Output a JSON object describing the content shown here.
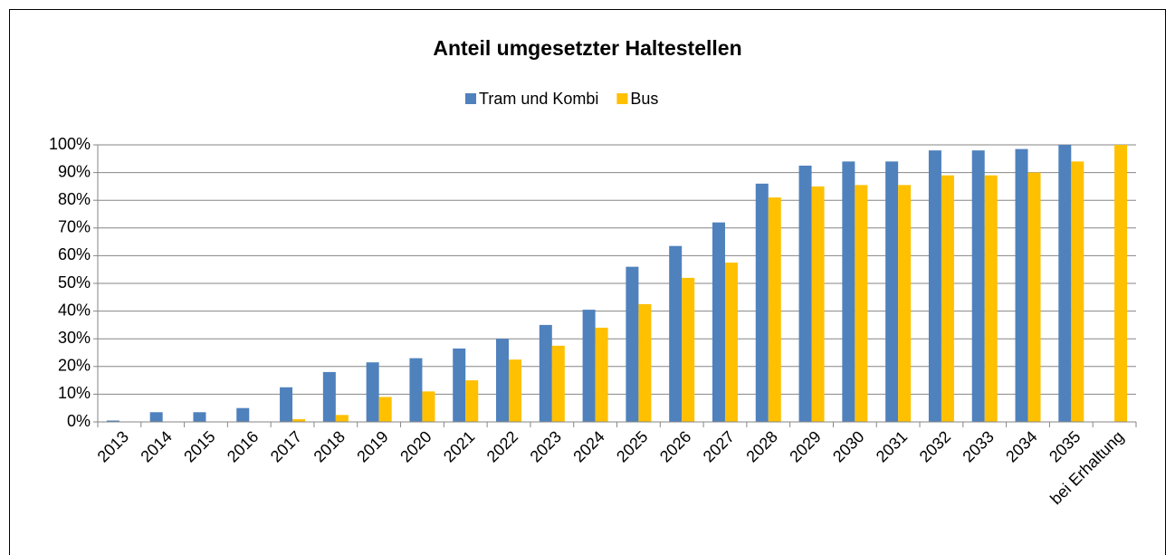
{
  "chart_data": {
    "type": "bar",
    "title": "Anteil umgesetzter Haltestellen",
    "categories": [
      "2013",
      "2014",
      "2015",
      "2016",
      "2017",
      "2018",
      "2019",
      "2020",
      "2021",
      "2022",
      "2023",
      "2024",
      "2025",
      "2026",
      "2027",
      "2028",
      "2029",
      "2030",
      "2031",
      "2032",
      "2033",
      "2034",
      "2035",
      "bei Erhaltung"
    ],
    "series": [
      {
        "name": "Tram und Kombi",
        "color": "#4f81bd",
        "values": [
          0.5,
          3.5,
          3.5,
          5,
          12.5,
          18,
          21.5,
          23,
          26.5,
          30,
          35,
          40.5,
          56,
          63.5,
          72,
          86,
          92.5,
          94,
          94,
          98,
          98,
          98.5,
          100,
          null
        ]
      },
      {
        "name": "Bus",
        "color": "#ffc000",
        "values": [
          0,
          0,
          0,
          0,
          1,
          2.5,
          9,
          11,
          15,
          22.5,
          27.5,
          34,
          42.5,
          52,
          57.5,
          81,
          85,
          85.5,
          85.5,
          89,
          89,
          90,
          94,
          100
        ]
      }
    ],
    "ylim": [
      0,
      100
    ],
    "yticks": [
      {
        "value": 0,
        "label": "0%"
      },
      {
        "value": 10,
        "label": "10%"
      },
      {
        "value": 20,
        "label": "20%"
      },
      {
        "value": 30,
        "label": "30%"
      },
      {
        "value": 40,
        "label": "40%"
      },
      {
        "value": 50,
        "label": "50%"
      },
      {
        "value": 60,
        "label": "60%"
      },
      {
        "value": 70,
        "label": "70%"
      },
      {
        "value": 80,
        "label": "80%"
      },
      {
        "value": 90,
        "label": "90%"
      },
      {
        "value": 100,
        "label": "100%"
      }
    ],
    "grid": true,
    "legend": "top"
  }
}
